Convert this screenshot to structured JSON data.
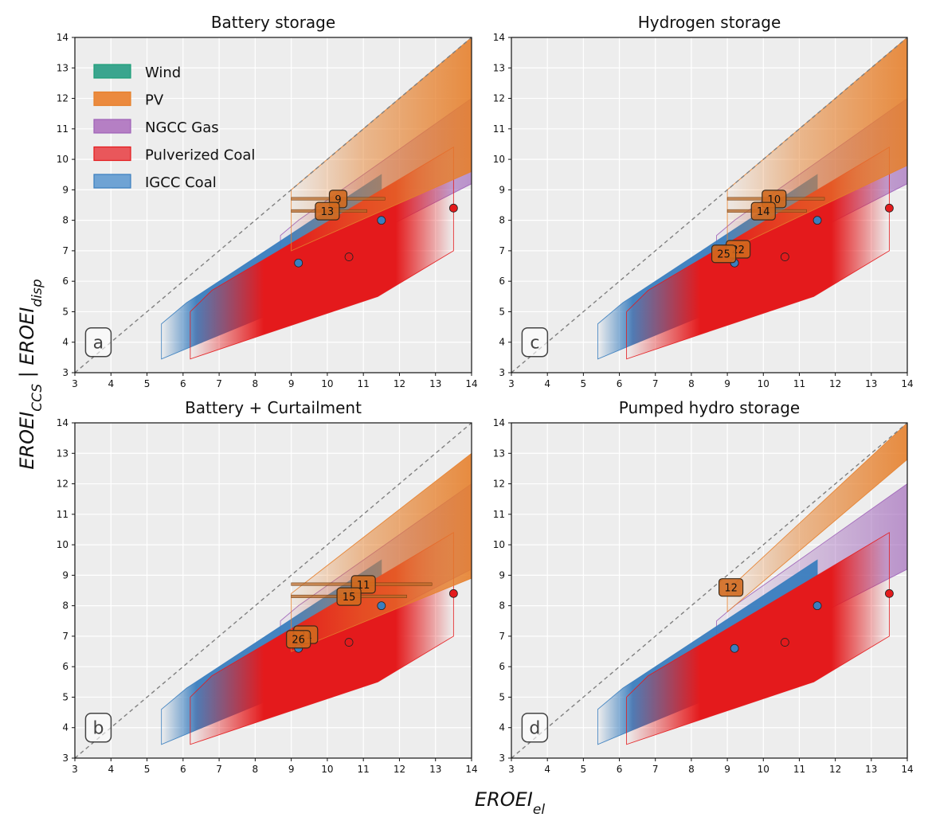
{
  "figure": {
    "ylabel_main": "EROEI",
    "ylabel_sub_1": "CCS",
    "ylabel_sep": " | ",
    "ylabel_sub_2": "disp",
    "xlabel_main": "EROEI",
    "xlabel_sub": "el"
  },
  "colors": {
    "Wind": "#1b9e77",
    "PV": "#e6802c",
    "NGCC Gas": "#9e62b8",
    "Pulverized Coal": "#e41a1c",
    "IGCC Coal": "#3a7ebf",
    "background": "#ededed",
    "grid": "#ffffff",
    "diagonal": "#808080"
  },
  "legend": [
    {
      "label": "Wind",
      "color": "#3aa58e"
    },
    {
      "label": "PV",
      "color": "#eb8a3e"
    },
    {
      "label": "NGCC Gas",
      "color": "#b57fc4"
    },
    {
      "label": "Pulverized Coal",
      "color": "#e9575b"
    },
    {
      "label": "IGCC Coal",
      "color": "#6fa3d4"
    }
  ],
  "chart_data": [
    {
      "type": "area",
      "title": "Battery storage",
      "panel_letter": "a",
      "xlim": [
        3,
        14
      ],
      "ylim": [
        3,
        14
      ],
      "xticks": [
        3,
        4,
        5,
        6,
        7,
        8,
        9,
        10,
        11,
        12,
        13,
        14
      ],
      "yticks": [
        3,
        4,
        5,
        6,
        7,
        8,
        9,
        10,
        11,
        12,
        13,
        14
      ],
      "grid": true,
      "legend_position": "upper-left",
      "diagonal": [
        [
          3,
          3
        ],
        [
          14,
          14
        ]
      ],
      "series": [
        {
          "name": "IGCC Coal",
          "points": [
            [
              9.2,
              6.6
            ],
            [
              11.5,
              8.0
            ]
          ],
          "band_outline": [
            [
              5.4,
              4.6
            ],
            [
              6.1,
              5.3
            ],
            [
              11.5,
              9.5
            ],
            [
              11.5,
              7.0
            ],
            [
              9.2,
              5.3
            ],
            [
              5.4,
              3.45
            ]
          ]
        },
        {
          "name": "Pulverized Coal",
          "points": [
            [
              10.6,
              6.8
            ],
            [
              13.5,
              8.4
            ]
          ],
          "band_outline": [
            [
              6.2,
              5.0
            ],
            [
              6.8,
              5.7
            ],
            [
              13.5,
              10.4
            ],
            [
              13.5,
              7.0
            ],
            [
              11.4,
              5.5
            ],
            [
              6.2,
              3.45
            ]
          ]
        },
        {
          "name": "NGCC Gas",
          "band_outline": [
            [
              8.7,
              7.5
            ],
            [
              9.2,
              8.0
            ],
            [
              14,
              12.0
            ],
            [
              14,
              9.2
            ],
            [
              9.2,
              6.3
            ],
            [
              8.7,
              6.1
            ]
          ]
        },
        {
          "name": "PV",
          "band_outline": [
            [
              9.0,
              9.0
            ],
            [
              14,
              14
            ],
            [
              14,
              9.6
            ],
            [
              9.0,
              7.0
            ]
          ]
        },
        {
          "name": "PV markers",
          "markers": [
            {
              "label": "9",
              "x": 10.3,
              "y": 8.7,
              "range": [
                9.0,
                11.6
              ]
            },
            {
              "label": "13",
              "x": 10.0,
              "y": 8.3,
              "range": [
                9.0,
                11.1
              ]
            }
          ]
        }
      ]
    },
    {
      "type": "area",
      "title": "Hydrogen storage",
      "panel_letter": "c",
      "xlim": [
        3,
        14
      ],
      "ylim": [
        3,
        14
      ],
      "xticks": [
        3,
        4,
        5,
        6,
        7,
        8,
        9,
        10,
        11,
        12,
        13,
        14
      ],
      "yticks": [
        3,
        4,
        5,
        6,
        7,
        8,
        9,
        10,
        11,
        12,
        13,
        14
      ],
      "grid": true,
      "diagonal": [
        [
          3,
          3
        ],
        [
          14,
          14
        ]
      ],
      "series": [
        {
          "name": "IGCC Coal",
          "points": [
            [
              9.2,
              6.6
            ],
            [
              11.5,
              8.0
            ]
          ],
          "band_outline": [
            [
              5.4,
              4.6
            ],
            [
              6.1,
              5.3
            ],
            [
              11.5,
              9.5
            ],
            [
              11.5,
              7.0
            ],
            [
              9.2,
              5.3
            ],
            [
              5.4,
              3.45
            ]
          ]
        },
        {
          "name": "Pulverized Coal",
          "points": [
            [
              10.6,
              6.8
            ],
            [
              13.5,
              8.4
            ]
          ],
          "band_outline": [
            [
              6.2,
              5.0
            ],
            [
              6.8,
              5.7
            ],
            [
              13.5,
              10.4
            ],
            [
              13.5,
              7.0
            ],
            [
              11.4,
              5.5
            ],
            [
              6.2,
              3.45
            ]
          ]
        },
        {
          "name": "NGCC Gas",
          "band_outline": [
            [
              8.7,
              7.5
            ],
            [
              9.2,
              8.0
            ],
            [
              14,
              12.0
            ],
            [
              14,
              9.2
            ],
            [
              9.2,
              6.3
            ],
            [
              8.7,
              6.1
            ]
          ]
        },
        {
          "name": "PV",
          "band_outline": [
            [
              9.0,
              9.0
            ],
            [
              14,
              14
            ],
            [
              14,
              9.8
            ],
            [
              9.0,
              7.0
            ]
          ]
        },
        {
          "name": "PV markers",
          "markers": [
            {
              "label": "10",
              "x": 10.3,
              "y": 8.7,
              "range": [
                9.0,
                11.7
              ]
            },
            {
              "label": "14",
              "x": 10.0,
              "y": 8.3,
              "range": [
                9.0,
                11.2
              ]
            },
            {
              "label": "22",
              "x": 9.3,
              "y": 7.05
            },
            {
              "label": "25",
              "x": 8.9,
              "y": 6.9
            }
          ]
        }
      ]
    },
    {
      "type": "area",
      "title": "Battery + Curtailment",
      "panel_letter": "b",
      "xlim": [
        3,
        14
      ],
      "ylim": [
        3,
        14
      ],
      "xticks": [
        3,
        4,
        5,
        6,
        7,
        8,
        9,
        10,
        11,
        12,
        13,
        14
      ],
      "yticks": [
        3,
        4,
        5,
        6,
        7,
        8,
        9,
        10,
        11,
        12,
        13,
        14
      ],
      "grid": true,
      "diagonal": [
        [
          3,
          3
        ],
        [
          14,
          14
        ]
      ],
      "series": [
        {
          "name": "IGCC Coal",
          "points": [
            [
              9.2,
              6.6
            ],
            [
              11.5,
              8.0
            ]
          ],
          "band_outline": [
            [
              5.4,
              4.6
            ],
            [
              6.1,
              5.3
            ],
            [
              11.5,
              9.5
            ],
            [
              11.5,
              7.0
            ],
            [
              9.2,
              5.3
            ],
            [
              5.4,
              3.45
            ]
          ]
        },
        {
          "name": "Pulverized Coal",
          "points": [
            [
              10.6,
              6.8
            ],
            [
              13.5,
              8.4
            ]
          ],
          "band_outline": [
            [
              6.2,
              5.0
            ],
            [
              6.8,
              5.7
            ],
            [
              13.5,
              10.4
            ],
            [
              13.5,
              7.0
            ],
            [
              11.4,
              5.5
            ],
            [
              6.2,
              3.45
            ]
          ]
        },
        {
          "name": "NGCC Gas",
          "band_outline": [
            [
              8.7,
              7.5
            ],
            [
              9.2,
              8.0
            ],
            [
              14,
              12.0
            ],
            [
              14,
              9.2
            ],
            [
              9.2,
              6.3
            ],
            [
              8.7,
              6.1
            ]
          ]
        },
        {
          "name": "PV",
          "band_outline": [
            [
              9.0,
              8.4
            ],
            [
              14,
              13.0
            ],
            [
              14,
              8.9
            ],
            [
              9.0,
              6.5
            ]
          ]
        },
        {
          "name": "PV markers",
          "markers": [
            {
              "label": "11",
              "x": 11.0,
              "y": 8.7,
              "range": [
                9.0,
                12.9
              ]
            },
            {
              "label": "15",
              "x": 10.6,
              "y": 8.3,
              "range": [
                9.0,
                12.2
              ]
            },
            {
              "label": "21",
              "x": 9.4,
              "y": 7.05
            },
            {
              "label": "26",
              "x": 9.2,
              "y": 6.9
            }
          ]
        }
      ]
    },
    {
      "type": "area",
      "title": "Pumped hydro storage",
      "panel_letter": "d",
      "xlim": [
        3,
        14
      ],
      "ylim": [
        3,
        14
      ],
      "xticks": [
        3,
        4,
        5,
        6,
        7,
        8,
        9,
        10,
        11,
        12,
        13,
        14
      ],
      "yticks": [
        3,
        4,
        5,
        6,
        7,
        8,
        9,
        10,
        11,
        12,
        13,
        14
      ],
      "grid": true,
      "diagonal": [
        [
          3,
          3
        ],
        [
          14,
          14
        ]
      ],
      "series": [
        {
          "name": "IGCC Coal",
          "points": [
            [
              9.2,
              6.6
            ],
            [
              11.5,
              8.0
            ]
          ],
          "band_outline": [
            [
              5.4,
              4.6
            ],
            [
              6.1,
              5.3
            ],
            [
              11.5,
              9.5
            ],
            [
              11.5,
              7.0
            ],
            [
              9.2,
              5.3
            ],
            [
              5.4,
              3.45
            ]
          ]
        },
        {
          "name": "Pulverized Coal",
          "points": [
            [
              10.6,
              6.8
            ],
            [
              13.5,
              8.4
            ]
          ],
          "band_outline": [
            [
              6.2,
              5.0
            ],
            [
              6.8,
              5.7
            ],
            [
              13.5,
              10.4
            ],
            [
              13.5,
              7.0
            ],
            [
              11.4,
              5.5
            ],
            [
              6.2,
              3.45
            ]
          ]
        },
        {
          "name": "NGCC Gas",
          "band_outline": [
            [
              8.7,
              7.5
            ],
            [
              9.2,
              8.0
            ],
            [
              14,
              12.0
            ],
            [
              14,
              9.2
            ],
            [
              9.2,
              6.3
            ],
            [
              8.7,
              6.1
            ]
          ]
        },
        {
          "name": "PV",
          "band_outline": [
            [
              9.0,
              8.5
            ],
            [
              14,
              14
            ],
            [
              14,
              12.8
            ],
            [
              9.0,
              7.8
            ]
          ]
        },
        {
          "name": "PV markers",
          "markers": [
            {
              "label": "12",
              "x": 9.1,
              "y": 8.6
            }
          ]
        }
      ]
    }
  ]
}
